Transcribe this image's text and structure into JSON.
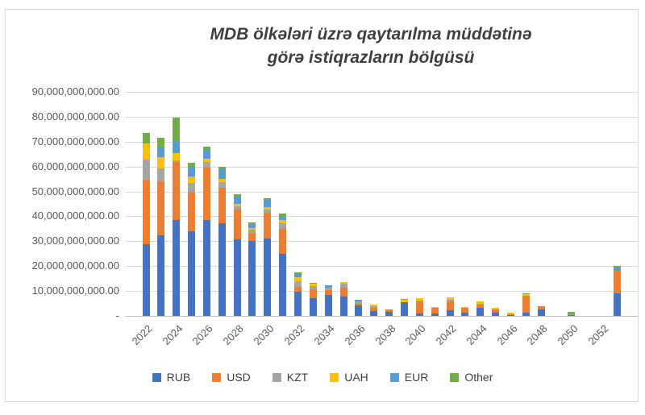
{
  "chart_data": {
    "type": "bar",
    "stacked": true,
    "title": "MDB ölkələri üzrə qaytarılma müddətinə görə istiqrazların bölgüsü",
    "title_line1": "MDB ölkələri üzrə qaytarılma müddətinə",
    "title_line2": "görə istiqrazların bölgüsü",
    "categories": [
      "2022",
      "2023",
      "2024",
      "2025",
      "2026",
      "2027",
      "2028",
      "2029",
      "2030",
      "2031",
      "2032",
      "2033",
      "2034",
      "2035",
      "2036",
      "2037",
      "2038",
      "2039",
      "2040",
      "2041",
      "2042",
      "2043",
      "2044",
      "2045",
      "2046",
      "2047",
      "2048",
      "2049",
      "2050",
      "2051",
      "2052",
      "2053"
    ],
    "xtick_labels": [
      "2022",
      "2024",
      "2026",
      "2028",
      "2030",
      "2032",
      "2034",
      "2036",
      "2038",
      "2040",
      "2042",
      "2044",
      "2046",
      "2048",
      "2050",
      "2052"
    ],
    "ytick_labels": [
      "90,000,000,000.00",
      "80,000,000,000.00",
      "70,000,000,000.00",
      "60,000,000,000.00",
      "50,000,000,000.00",
      "40,000,000,000.00",
      "30,000,000,000.00",
      "20,000,000,000.00",
      "10,000,000,000.00",
      "-"
    ],
    "ylim": [
      0,
      90000000000
    ],
    "ytick_step": 10000000000,
    "grid": true,
    "legend_position": "bottom",
    "axis_text_color": "#595959",
    "title_color": "#3f3f3f",
    "gridline_color": "#d9d9d9",
    "series": [
      {
        "name": "RUB",
        "color": "#4472C4",
        "values": [
          28800000000,
          32500000000,
          38400000000,
          34100000000,
          38600000000,
          37300000000,
          30600000000,
          30000000000,
          31200000000,
          25000000000,
          9800000000,
          7000000000,
          8400000000,
          7700000000,
          4100000000,
          2000000000,
          1500000000,
          5500000000,
          1000000000,
          900000000,
          2300000000,
          1400000000,
          3200000000,
          1200000000,
          300000000,
          1200000000,
          2500000000,
          0,
          500000000,
          0,
          0,
          9000000000
        ]
      },
      {
        "name": "USD",
        "color": "#ED7D31",
        "values": [
          26000000000,
          21600000000,
          23500000000,
          15300000000,
          21100000000,
          14200000000,
          12100000000,
          3200000000,
          10200000000,
          10000000000,
          1800000000,
          3800000000,
          1900000000,
          3600000000,
          900000000,
          1300000000,
          1100000000,
          0,
          4800000000,
          2200000000,
          3400000000,
          2000000000,
          1400000000,
          1400000000,
          400000000,
          6800000000,
          1400000000,
          0,
          0,
          0,
          0,
          9200000000
        ]
      },
      {
        "name": "KZT",
        "color": "#A5A5A5",
        "values": [
          7900000000,
          5100000000,
          600000000,
          3900000000,
          2200000000,
          2200000000,
          1300000000,
          1400000000,
          1300000000,
          2200000000,
          2200000000,
          1300000000,
          1100000000,
          1500000000,
          800000000,
          700000000,
          0,
          0,
          400000000,
          0,
          700000000,
          0,
          300000000,
          0,
          0,
          0,
          0,
          0,
          300000000,
          0,
          0,
          0
        ]
      },
      {
        "name": "UAH",
        "color": "#FFC000",
        "values": [
          6500000000,
          4600000000,
          2800000000,
          2700000000,
          1300000000,
          1400000000,
          900000000,
          800000000,
          900000000,
          1300000000,
          1600000000,
          800000000,
          0,
          900000000,
          0,
          500000000,
          0,
          1000000000,
          800000000,
          600000000,
          900000000,
          300000000,
          900000000,
          700000000,
          500000000,
          600000000,
          0,
          0,
          0,
          0,
          0,
          0
        ]
      },
      {
        "name": "EUR",
        "color": "#5B9BD5",
        "values": [
          0,
          3800000000,
          4500000000,
          4000000000,
          3500000000,
          3800000000,
          3000000000,
          1400000000,
          2900000000,
          1300000000,
          1700000000,
          400000000,
          800000000,
          0,
          600000000,
          0,
          0,
          400000000,
          0,
          0,
          0,
          0,
          0,
          0,
          0,
          0,
          0,
          0,
          0,
          0,
          0,
          1300000000
        ]
      },
      {
        "name": "Other",
        "color": "#70AD47",
        "values": [
          4300000000,
          4000000000,
          9700000000,
          1600000000,
          1400000000,
          900000000,
          1100000000,
          800000000,
          900000000,
          1300000000,
          300000000,
          0,
          0,
          0,
          0,
          0,
          0,
          0,
          0,
          0,
          0,
          0,
          0,
          0,
          0,
          400000000,
          0,
          0,
          800000000,
          0,
          0,
          500000000
        ]
      }
    ]
  }
}
